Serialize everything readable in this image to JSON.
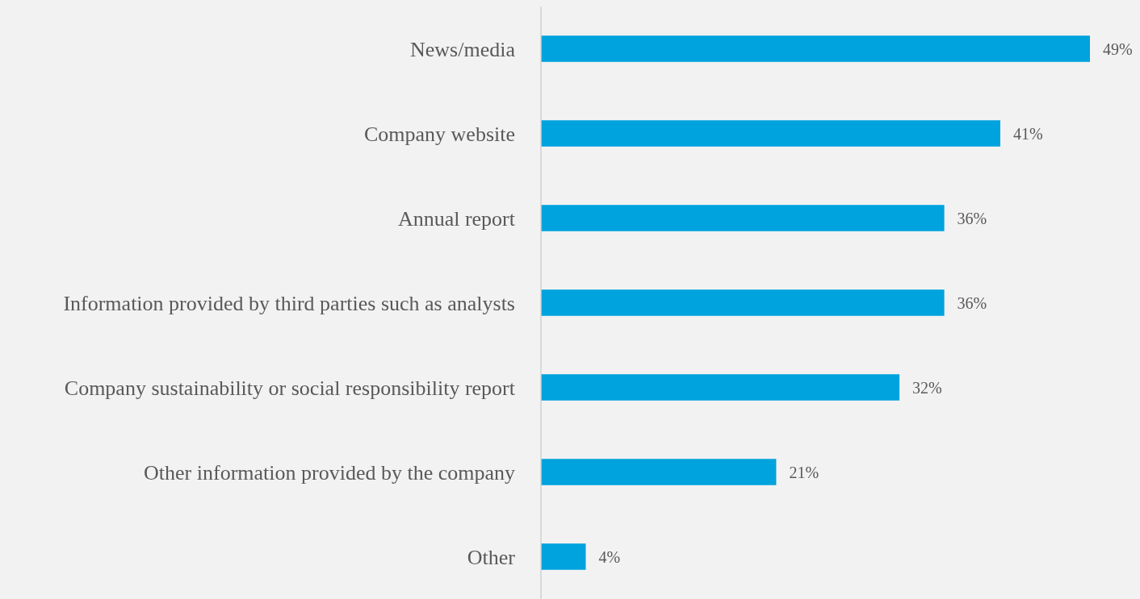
{
  "chart_data": {
    "type": "bar",
    "orientation": "horizontal",
    "categories": [
      "News/media",
      "Company website",
      "Annual report",
      "Information provided by third parties such as analysts",
      "Company sustainability or social responsibility report",
      "Other information provided by the company",
      "Other"
    ],
    "values": [
      49,
      41,
      36,
      36,
      32,
      21,
      4
    ],
    "color": "#00a3de",
    "value_labels": [
      "49%",
      "41%",
      "36%",
      "36%",
      "32%",
      "21%",
      "4%"
    ]
  }
}
